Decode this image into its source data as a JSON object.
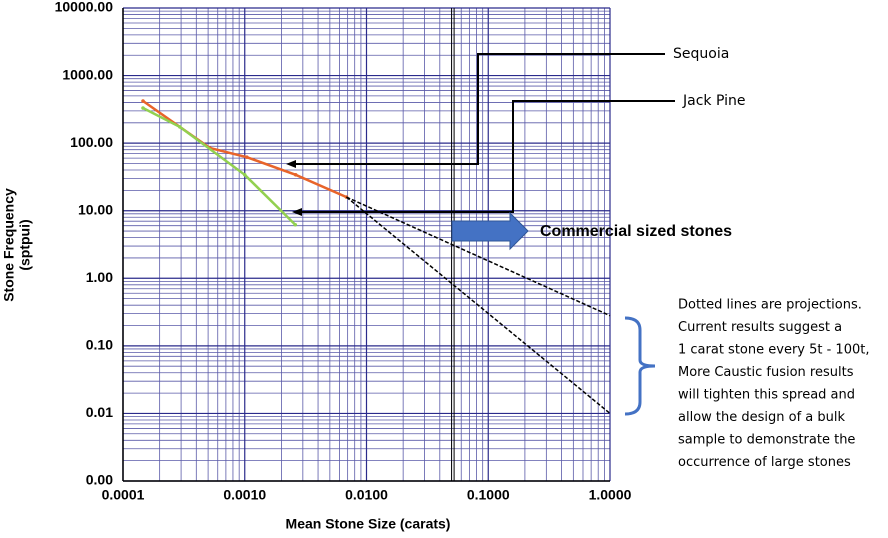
{
  "chart_data": {
    "type": "line",
    "xlabel": "Mean Stone Size (carats)",
    "ylabel": [
      "Stone Frequency",
      "(sptpui)"
    ],
    "xscale": "log",
    "yscale": "log",
    "grid": true,
    "xlim": [
      0.0001,
      1.0
    ],
    "ylim": [
      0.001,
      10000
    ],
    "xticks": [
      {
        "value": 0.0001,
        "label": "0.0001"
      },
      {
        "value": 0.001,
        "label": "0.0010"
      },
      {
        "value": 0.01,
        "label": "0.0100"
      },
      {
        "value": 0.1,
        "label": "0.1000"
      },
      {
        "value": 1.0,
        "label": "1.0000"
      }
    ],
    "yticks": [
      {
        "value": 0.001,
        "label": "0.00"
      },
      {
        "value": 0.01,
        "label": "0.01"
      },
      {
        "value": 0.1,
        "label": "0.10"
      },
      {
        "value": 1,
        "label": "1.00"
      },
      {
        "value": 10,
        "label": "10.00"
      },
      {
        "value": 100,
        "label": "100.00"
      },
      {
        "value": 1000,
        "label": "1000.00"
      },
      {
        "value": 10000,
        "label": "10000.00"
      }
    ],
    "vlines": [
      0.05
    ],
    "series": [
      {
        "name": "Sequoia",
        "color": "#e8642a",
        "x": [
          0.000146,
          0.000516,
          0.00104,
          0.00262,
          0.00685
        ],
        "values": [
          420,
          85,
          62,
          34,
          15.9
        ]
      },
      {
        "name": "Jack Pine",
        "color": "#92d050",
        "x": [
          0.000146,
          0.000293,
          0.001,
          0.0026
        ],
        "values": [
          331,
          174,
          34,
          6.2
        ]
      },
      {
        "color": "#000000",
        "dashed": true,
        "x": [
          0.00685,
          1.0
        ],
        "values": [
          15.9,
          0.28
        ]
      },
      {
        "color": "#000000",
        "dashed": true,
        "x": [
          0.00685,
          1.0
        ],
        "values": [
          15.9,
          0.01
        ]
      }
    ],
    "annotations": {
      "arrow_label": "Commercial sized stones",
      "note": [
        "Dotted lines are projections.",
        "Current results suggest a",
        "1 carat stone every 5t - 100t,",
        "More Caustic fusion results",
        "will tighten this spread and",
        "allow the design of a bulk",
        "sample to demonstrate the",
        "occurrence of large stones"
      ]
    }
  }
}
